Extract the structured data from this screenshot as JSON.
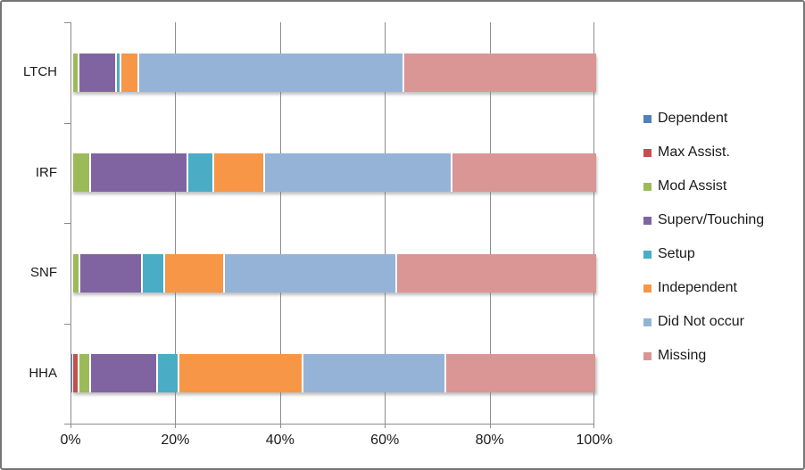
{
  "window": {
    "background": "#FFFFFF",
    "border_color": "#757575"
  },
  "colors": {
    "gridline": "#8C8C8C",
    "axis": "#8C8C8C",
    "text": "#1A1A1A",
    "segment_gap": "#FFFFFF"
  },
  "chart_data": {
    "type": "bar",
    "orientation": "horizontal",
    "stacked": true,
    "unit": "percent",
    "title": "",
    "xlabel": "",
    "ylabel": "",
    "grid": true,
    "legend_position": "right",
    "categories": [
      "LTCH",
      "IRF",
      "SNF",
      "HHA"
    ],
    "series": [
      {
        "name": "Dependent",
        "color": "#4F81BD",
        "values": [
          0.1,
          0.1,
          0.1,
          0.4
        ]
      },
      {
        "name": "Max Assist.",
        "color": "#C0504D",
        "values": [
          0.1,
          0.1,
          0.1,
          1.1
        ]
      },
      {
        "name": "Mod Assist",
        "color": "#9BBB59",
        "values": [
          1.2,
          3.4,
          1.4,
          2.2
        ]
      },
      {
        "name": "Superv/Touching",
        "color": "#8064A2",
        "values": [
          7.2,
          18.6,
          11.9,
          12.8
        ]
      },
      {
        "name": "Setup",
        "color": "#4BACC6",
        "values": [
          0.8,
          4.9,
          4.3,
          4.2
        ]
      },
      {
        "name": "Independent",
        "color": "#F79646",
        "values": [
          3.4,
          9.7,
          11.4,
          23.6
        ]
      },
      {
        "name": "Did Not occur",
        "color": "#95B3D7",
        "values": [
          50.6,
          35.8,
          32.8,
          27.2
        ]
      },
      {
        "name": "Missing",
        "color": "#D99694",
        "values": [
          36.6,
          27.4,
          38.0,
          28.5
        ]
      }
    ],
    "x_axis": {
      "min": 0,
      "max": 100,
      "tick_interval": 20,
      "tick_labels": [
        "0%",
        "20%",
        "40%",
        "60%",
        "80%",
        "100%"
      ]
    }
  }
}
